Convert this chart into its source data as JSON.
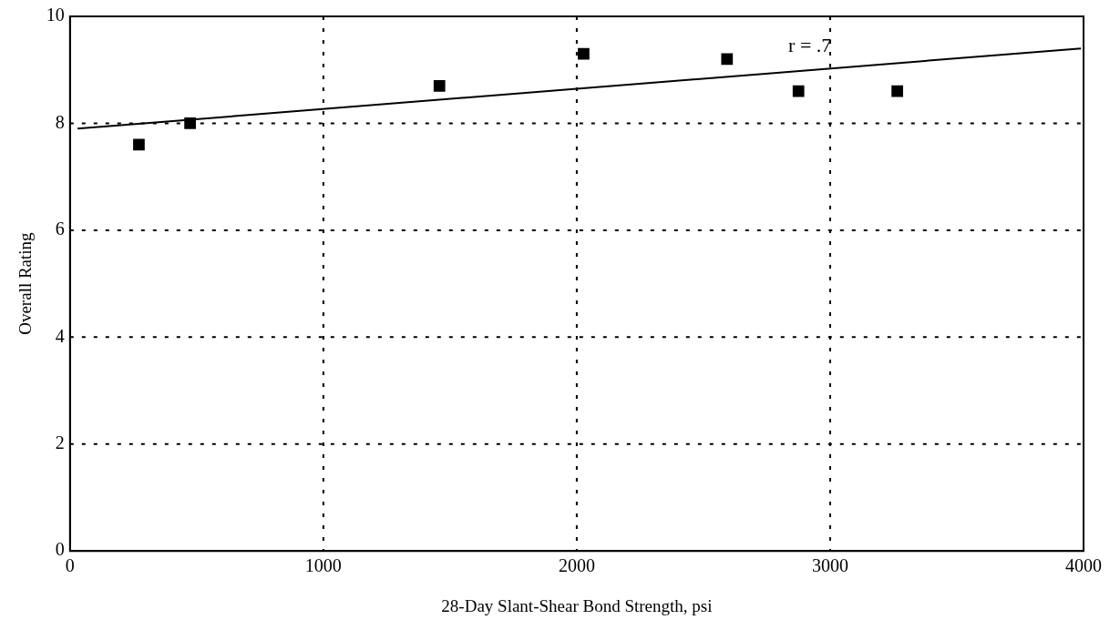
{
  "chart_data": {
    "type": "scatter",
    "xlabel": "28-Day Slant-Shear Bond Strength, psi",
    "ylabel": "Overall Rating",
    "x": [
      272,
      474,
      1458,
      2027,
      2593,
      2875,
      3265
    ],
    "series": [
      {
        "type": "scatter",
        "color": "#000000",
        "marker": "square",
        "values": [
          7.6,
          8.0,
          8.7,
          9.3,
          9.2,
          8.6,
          8.6
        ]
      },
      {
        "type": "line",
        "color": "#000000",
        "marker": "none",
        "line_style": "solid",
        "x": [
          30,
          3990
        ],
        "values": [
          7.9,
          9.4
        ]
      }
    ],
    "xlim": [
      0,
      4000
    ],
    "xticks": [
      0,
      1000,
      2000,
      3000,
      4000
    ],
    "ylim": [
      0,
      10
    ],
    "yticks": [
      0,
      2,
      4,
      6,
      8,
      10
    ],
    "grid": true,
    "legend": false,
    "annotations": [
      "r = .7"
    ]
  }
}
